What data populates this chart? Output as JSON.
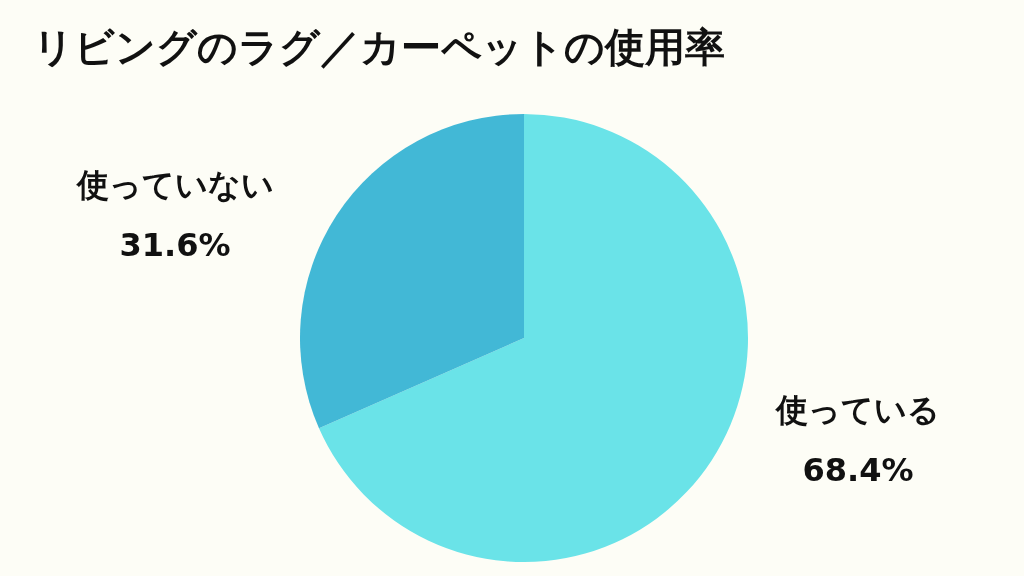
{
  "chart_data": {
    "type": "pie",
    "title": "リビングのラグ／カーペットの使用率",
    "categories": [
      "使っている",
      "使っていない"
    ],
    "values": [
      68.4,
      31.6
    ],
    "colors": [
      "#6ae3e8",
      "#42b8d6"
    ],
    "value_labels": [
      "68.4%",
      "31.6%"
    ],
    "legend": false
  }
}
